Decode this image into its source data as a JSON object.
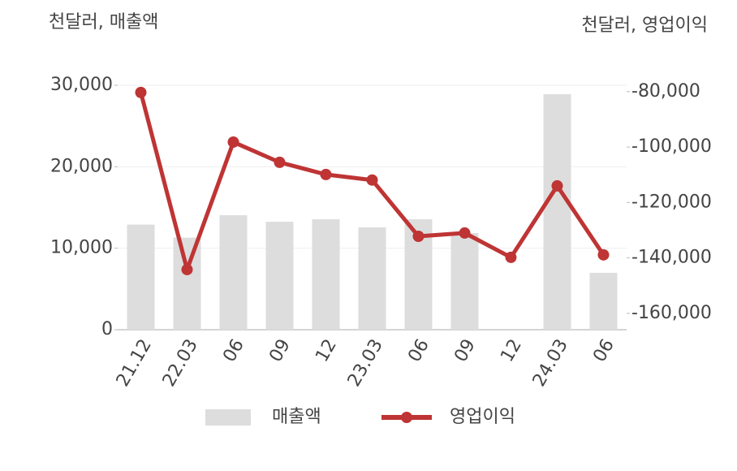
{
  "chart_data": {
    "type": "bar-line",
    "y_label": "천달러, 매출액",
    "y2_label": "천달러, 영업이익",
    "categories": [
      "21.12",
      "22.03",
      "06",
      "09",
      "12",
      "23.03",
      "06",
      "09",
      "12",
      "24.03",
      "06"
    ],
    "series": [
      {
        "name": "매출액",
        "type": "bar",
        "color": "#dddddd",
        "axis": "y",
        "values": [
          12900,
          11300,
          14050,
          13250,
          13550,
          12560,
          13550,
          11860,
          null,
          28900,
          6980
        ]
      },
      {
        "name": "영업이익",
        "type": "line",
        "color": "#bf3434",
        "axis": "y2",
        "values": [
          -80300,
          -144200,
          -98200,
          -105500,
          -109900,
          -111900,
          -132200,
          -131000,
          -139800,
          -114000,
          -138900
        ]
      }
    ],
    "ylim": [
      0,
      30000
    ],
    "yticks": [
      0,
      {
        "value": 10000,
        "label": "10,000"
      },
      {
        "value": 20000,
        "label": "20,000"
      },
      {
        "value": 30000,
        "label": "30,000"
      }
    ],
    "y2lim": [
      -165900,
      -77700
    ],
    "y2ticks": [
      {
        "value": -160000,
        "label": "-160,000"
      },
      {
        "value": -140000,
        "label": "-140,000"
      },
      {
        "value": -120000,
        "label": "-120,000"
      },
      {
        "value": -100000,
        "label": "-100,000"
      },
      {
        "value": -80000,
        "label": "-80,000"
      }
    ],
    "grid": true
  }
}
